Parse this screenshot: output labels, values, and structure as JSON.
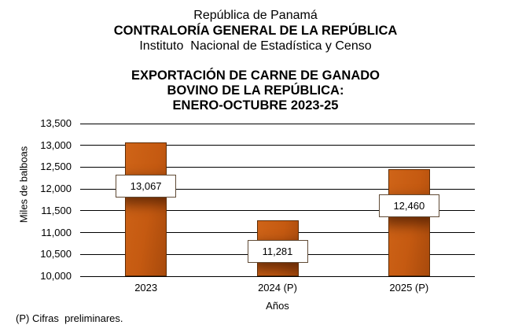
{
  "header": {
    "line1": "República de Panamá",
    "line2": "CONTRALORÍA GENERAL DE LA REPÚBLICA",
    "line3": "Instituto  Nacional de Estadística y Censo"
  },
  "chart_data": {
    "type": "bar",
    "title_lines": [
      "EXPORTACIÓN DE CARNE DE GANADO",
      "BOVINO DE LA REPÚBLICA:",
      "ENERO-OCTUBRE 2023-25"
    ],
    "categories": [
      "2023",
      "2024 (P)",
      "2025 (P)"
    ],
    "values": [
      13067,
      11281,
      12460
    ],
    "value_labels": [
      "13,067",
      "11,281",
      "12,460"
    ],
    "xlabel": "Años",
    "ylabel": "Miles de balboas",
    "ylim": [
      10000,
      13500
    ],
    "ytick_step": 500,
    "ytick_labels": [
      "13,500",
      "13,000",
      "12,500",
      "12,000",
      "11,500",
      "11,000",
      "10,500",
      "10,000"
    ],
    "grid": true,
    "legend": "none",
    "bar_color": "#c55a11",
    "bar_border_color": "#5e2c05",
    "label_box_fill": "#ffffff",
    "label_box_border": "#604a35"
  },
  "footnote": "(P) Cifras  preliminares."
}
